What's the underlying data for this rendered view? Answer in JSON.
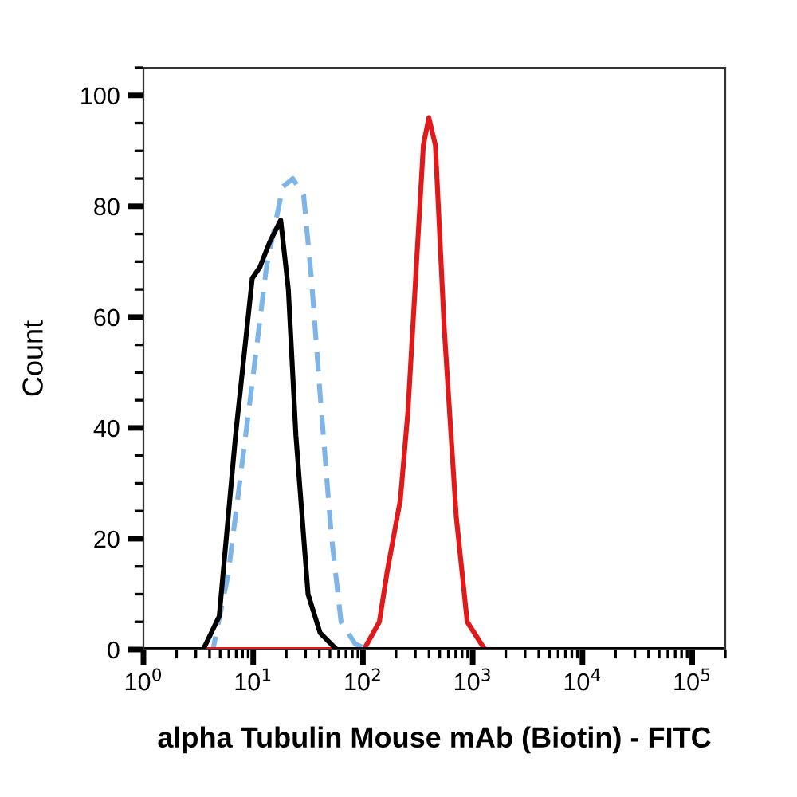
{
  "chart_data": {
    "type": "line",
    "xlabel": "alpha Tubulin Mouse mAb (Biotin) - FITC",
    "ylabel": "Count",
    "log": "x",
    "xlim": [
      1,
      200000
    ],
    "xticks": [
      {
        "value": 1,
        "label": "10$^{0}$"
      },
      {
        "value": 10,
        "label": "10$^{1}$"
      },
      {
        "value": 100,
        "label": "10$^{2}$"
      },
      {
        "value": 1000,
        "label": "10$^{3}$"
      },
      {
        "value": 10000,
        "label": "10$^{4}$"
      },
      {
        "value": 100000,
        "label": "10$^{5}$"
      }
    ],
    "ylim": [
      0,
      105
    ],
    "yticks": [
      0,
      20,
      40,
      60,
      80,
      100
    ],
    "grid": false,
    "legend": false,
    "marker": "none",
    "series": [
      {
        "color": "#7fb5e6",
        "line_style": "dashed",
        "x": [
          1,
          4.3,
          5.9,
          9.5,
          13.2,
          18.6,
          22.9,
          28.8,
          33.9,
          40.7,
          51.3,
          63.1,
          85.1,
          110,
          200000
        ],
        "values": [
          0,
          0,
          13.5,
          46,
          69,
          83.5,
          85,
          82,
          67,
          46,
          21,
          5,
          1,
          0,
          0
        ]
      },
      {
        "color": "#e0191b",
        "line_style": "solid",
        "x": [
          1,
          102,
          141,
          166,
          219,
          257,
          302,
          355,
          398,
          457,
          550,
          708,
          891,
          1290,
          200000
        ],
        "values": [
          0,
          0,
          5,
          14,
          27,
          43,
          67,
          91,
          96,
          91,
          58,
          24,
          5,
          0,
          0
        ]
      },
      {
        "color": "#000000",
        "line_style": "solid",
        "x": [
          1,
          3.5,
          4.9,
          6.9,
          9.8,
          11.5,
          14.1,
          17.8,
          20.9,
          24.5,
          31.6,
          40.7,
          57.5,
          200000
        ],
        "values": [
          0,
          0,
          6,
          38.6,
          67,
          69,
          73.5,
          77.5,
          65,
          38.6,
          10,
          3,
          0,
          0
        ]
      }
    ]
  }
}
